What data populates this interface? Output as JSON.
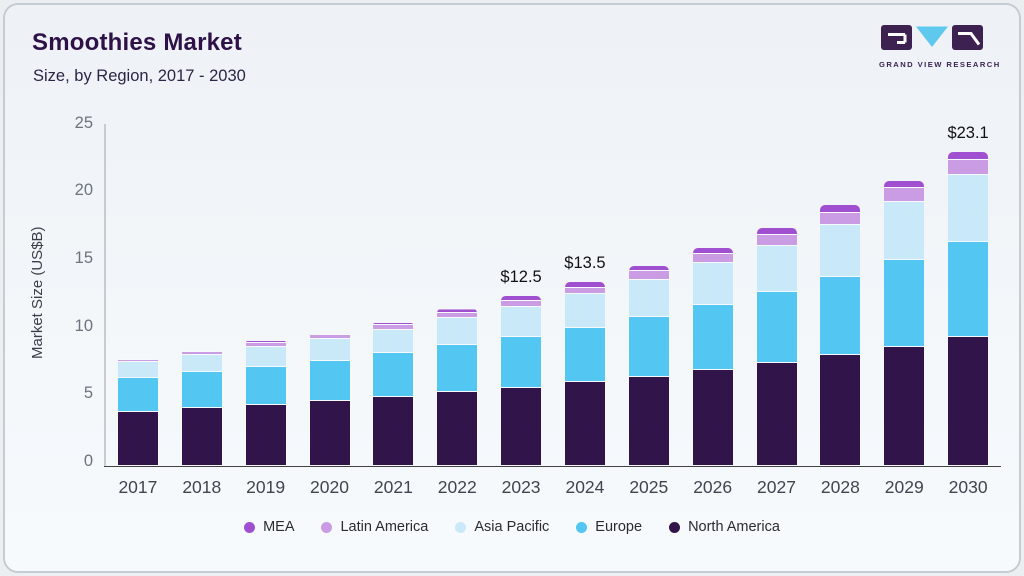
{
  "card": {
    "title": "Smoothies Market",
    "subtitle": "Size, by Region, 2017 - 2030",
    "logo_text": "GRAND VIEW RESEARCH"
  },
  "colors": {
    "brand_dark_purple": "#3d2151",
    "brand_light_blue": "#5ec9ec",
    "card_background": "#f3f7fa"
  },
  "chart_data": {
    "type": "bar",
    "stacked": true,
    "title": "Smoothies Market Size, by Region, 2017 - 2030",
    "xlabel": "",
    "ylabel": "Market Size (US$B)",
    "ylim": [
      0,
      25
    ],
    "yticks": [
      0,
      5,
      10,
      15,
      20,
      25
    ],
    "grid": false,
    "legend_position": "bottom",
    "categories": [
      "2017",
      "2018",
      "2019",
      "2020",
      "2021",
      "2022",
      "2023",
      "2024",
      "2025",
      "2026",
      "2027",
      "2028",
      "2029",
      "2030"
    ],
    "series": [
      {
        "name": "North America",
        "color": "#311449",
        "values": [
          3.9,
          4.2,
          4.4,
          4.7,
          5.0,
          5.4,
          5.7,
          6.1,
          6.5,
          7.0,
          7.5,
          8.1,
          8.75,
          9.45
        ]
      },
      {
        "name": "Europe",
        "color": "#53c6f1",
        "values": [
          2.5,
          2.65,
          2.85,
          3.0,
          3.25,
          3.5,
          3.75,
          4.0,
          4.4,
          4.8,
          5.3,
          5.8,
          6.4,
          7.05
        ]
      },
      {
        "name": "Asia Pacific",
        "color": "#c9e9f9",
        "values": [
          1.2,
          1.3,
          1.5,
          1.6,
          1.75,
          1.95,
          2.2,
          2.5,
          2.8,
          3.1,
          3.4,
          3.8,
          4.3,
          4.9
        ]
      },
      {
        "name": "Latin America",
        "color": "#c99ce4",
        "values": [
          0.15,
          0.2,
          0.3,
          0.3,
          0.35,
          0.4,
          0.5,
          0.5,
          0.6,
          0.7,
          0.8,
          0.9,
          1.0,
          1.1
        ]
      },
      {
        "name": "MEA",
        "color": "#a04fd0",
        "values": [
          0.05,
          0.05,
          0.15,
          0.1,
          0.15,
          0.25,
          0.35,
          0.4,
          0.4,
          0.4,
          0.5,
          0.6,
          0.55,
          0.6
        ]
      }
    ],
    "totals": [
      7.8,
      8.4,
      9.2,
      9.7,
      10.5,
      11.5,
      12.5,
      13.5,
      14.7,
      16.0,
      17.5,
      19.2,
      21.0,
      23.1
    ],
    "annotations": [
      "",
      "",
      "",
      "",
      "",
      "",
      "$12.5",
      "$13.5",
      "",
      "",
      "",
      "",
      "",
      "$23.1"
    ],
    "legend": [
      {
        "label": "MEA",
        "color": "#a04fd0"
      },
      {
        "label": "Latin America",
        "color": "#c99ce4"
      },
      {
        "label": "Asia Pacific",
        "color": "#c9e9f9"
      },
      {
        "label": "Europe",
        "color": "#53c6f1"
      },
      {
        "label": "North America",
        "color": "#311449"
      }
    ]
  }
}
